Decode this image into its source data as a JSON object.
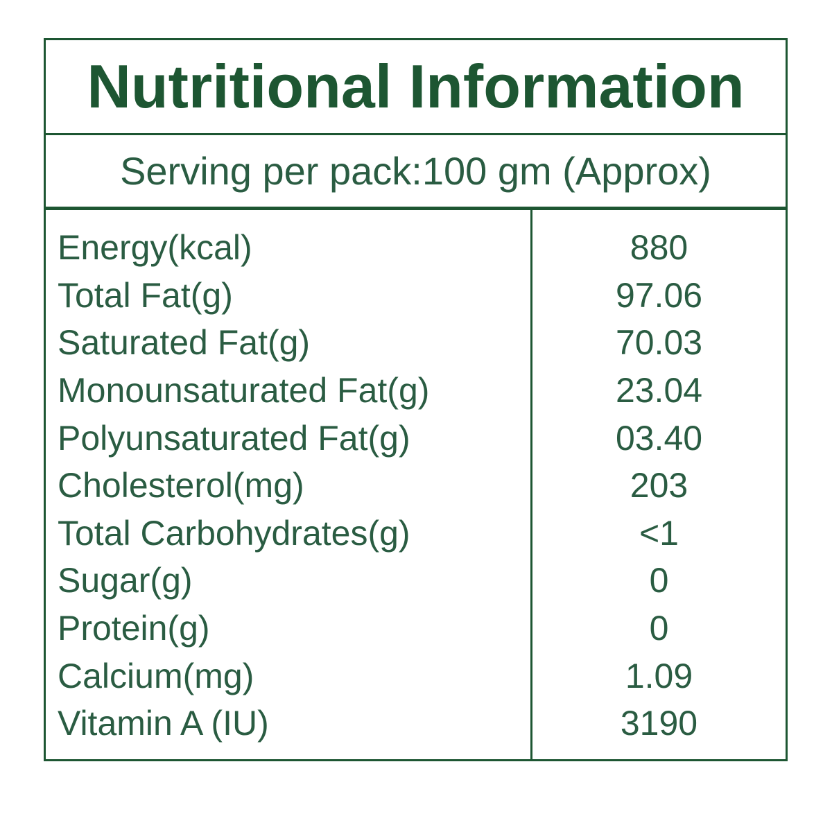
{
  "label": {
    "title": "Nutritional Information",
    "serving": "Serving per pack:100 gm (Approx)",
    "colors": {
      "border": "#1d5632",
      "title_text": "#1d5632",
      "body_text": "#2a5c42",
      "background": "#ffffff"
    },
    "rows": [
      {
        "name": "Energy(kcal)",
        "value": "880"
      },
      {
        "name": "Total Fat(g)",
        "value": "97.06"
      },
      {
        "name": "Saturated Fat(g)",
        "value": "70.03"
      },
      {
        "name": "Monounsaturated Fat(g)",
        "value": "23.04"
      },
      {
        "name": "Polyunsaturated Fat(g)",
        "value": "03.40"
      },
      {
        "name": "Cholesterol(mg)",
        "value": "203"
      },
      {
        "name": "Total Carbohydrates(g)",
        "value": "<1"
      },
      {
        "name": "Sugar(g)",
        "value": "0"
      },
      {
        "name": "Protein(g)",
        "value": "0"
      },
      {
        "name": "Calcium(mg)",
        "value": "1.09"
      },
      {
        "name": "Vitamin A (IU)",
        "value": "3190"
      }
    ]
  }
}
